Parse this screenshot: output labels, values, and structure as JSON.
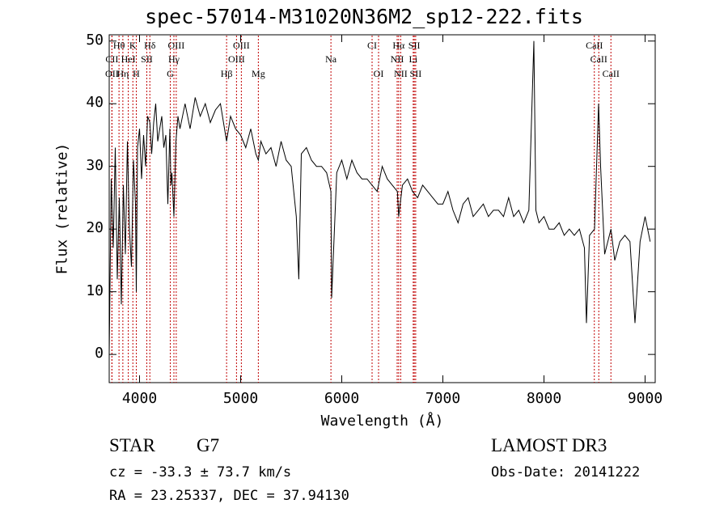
{
  "chart_data": {
    "type": "line",
    "title": "spec-57014-M31020N36M2_sp12-222.fits",
    "xlabel": "Wavelength (Å)",
    "ylabel": "Flux (relative)",
    "xlim": [
      3700,
      9100
    ],
    "ylim": [
      -4.5,
      51
    ],
    "xticks": [
      4000,
      5000,
      6000,
      7000,
      8000,
      9000
    ],
    "yticks": [
      0,
      10,
      20,
      30,
      40,
      50
    ],
    "series": [
      {
        "name": "flux",
        "x": [
          3700,
          3720,
          3740,
          3760,
          3780,
          3800,
          3820,
          3840,
          3860,
          3880,
          3900,
          3920,
          3940,
          3960,
          3968,
          3980,
          4000,
          4020,
          4040,
          4060,
          4080,
          4102,
          4120,
          4140,
          4160,
          4180,
          4200,
          4220,
          4240,
          4260,
          4280,
          4300,
          4310,
          4320,
          4340,
          4360,
          4380,
          4400,
          4450,
          4500,
          4550,
          4600,
          4650,
          4700,
          4750,
          4800,
          4861,
          4900,
          4950,
          5000,
          5050,
          5100,
          5150,
          5175,
          5200,
          5250,
          5300,
          5350,
          5400,
          5450,
          5500,
          5550,
          5575,
          5600,
          5650,
          5700,
          5750,
          5800,
          5850,
          5893,
          5900,
          5950,
          6000,
          6050,
          6100,
          6150,
          6200,
          6250,
          6300,
          6350,
          6400,
          6450,
          6500,
          6550,
          6563,
          6600,
          6650,
          6700,
          6750,
          6800,
          6850,
          6900,
          6950,
          7000,
          7050,
          7100,
          7150,
          7200,
          7250,
          7300,
          7350,
          7400,
          7450,
          7500,
          7550,
          7600,
          7650,
          7700,
          7750,
          7800,
          7850,
          7900,
          7920,
          7950,
          8000,
          8050,
          8100,
          8150,
          8200,
          8250,
          8300,
          8350,
          8400,
          8420,
          8450,
          8500,
          8540,
          8560,
          8600,
          8662,
          8700,
          8750,
          8800,
          8850,
          8900,
          8950,
          9000,
          9050
        ],
        "values": [
          0,
          28,
          17,
          33,
          12,
          25,
          8,
          27,
          16,
          34,
          20,
          14,
          31,
          24,
          10,
          33,
          36,
          28,
          35,
          30,
          38,
          37,
          32,
          37,
          40,
          34,
          36,
          38,
          33,
          35,
          24,
          36,
          27,
          29,
          22,
          34,
          38,
          36,
          40,
          36,
          41,
          38,
          40,
          37,
          39,
          40,
          34,
          38,
          36,
          35,
          33,
          36,
          32,
          31,
          34,
          32,
          33,
          30,
          34,
          31,
          30,
          22,
          12,
          32,
          33,
          31,
          30,
          30,
          29,
          26,
          9,
          29,
          31,
          28,
          31,
          29,
          28,
          28,
          27,
          26,
          30,
          28,
          27,
          26,
          22,
          27,
          28,
          26,
          25,
          27,
          26,
          25,
          24,
          24,
          26,
          23,
          21,
          24,
          25,
          22,
          23,
          24,
          22,
          23,
          23,
          22,
          25,
          22,
          23,
          21,
          23,
          50,
          23,
          21,
          22,
          20,
          20,
          21,
          19,
          20,
          19,
          20,
          17,
          5,
          19,
          20,
          40,
          30,
          16,
          20,
          15,
          18,
          19,
          18,
          5,
          18,
          22,
          18
        ]
      }
    ],
    "line_labels": [
      {
        "label": "Hθ",
        "wavelength": 3797
      },
      {
        "label": "K",
        "wavelength": 3934
      },
      {
        "label": "Hδ",
        "wavelength": 4102
      },
      {
        "label": "OIII",
        "wavelength": 4363
      },
      {
        "label": "OIII",
        "wavelength": 5007
      },
      {
        "label": "CI",
        "wavelength": 6300
      },
      {
        "label": "Hα",
        "wavelength": 6563
      },
      {
        "label": "SII",
        "wavelength": 6717
      },
      {
        "label": "CaII",
        "wavelength": 8498
      },
      {
        "label": "CII",
        "wavelength": 3727
      },
      {
        "label": "HeI",
        "wavelength": 3889
      },
      {
        "label": "SII",
        "wavelength": 4072
      },
      {
        "label": "Hγ",
        "wavelength": 4340
      },
      {
        "label": "OIII",
        "wavelength": 4959
      },
      {
        "label": "Na",
        "wavelength": 5893
      },
      {
        "label": "NII",
        "wavelength": 6548
      },
      {
        "label": "Li",
        "wavelength": 6707
      },
      {
        "label": "CaII",
        "wavelength": 8542
      },
      {
        "label": "OII",
        "wavelength": 3727
      },
      {
        "label": "Hη",
        "wavelength": 3835
      },
      {
        "label": "H",
        "wavelength": 3968
      },
      {
        "label": "G",
        "wavelength": 4304
      },
      {
        "label": "Hβ",
        "wavelength": 4861
      },
      {
        "label": "Mg",
        "wavelength": 5175
      },
      {
        "label": "OI",
        "wavelength": 6364
      },
      {
        "label": "NII",
        "wavelength": 6583
      },
      {
        "label": "SII",
        "wavelength": 6731
      },
      {
        "label": "CaII",
        "wavelength": 8662
      }
    ],
    "info": {
      "class": "STAR",
      "subclass": "G7",
      "survey": "LAMOST DR3",
      "cz": "cz = -33.3 ± 73.7 km/s",
      "obs_date": "Obs-Date: 20141222",
      "radec": "RA =  23.25337, DEC =  37.94130"
    }
  }
}
